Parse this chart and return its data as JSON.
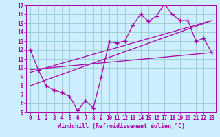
{
  "xlabel": "Windchill (Refroidissement éolien,°C)",
  "bg_color": "#cceeff",
  "line_color": "#aa00aa",
  "grid_color": "#99cccc",
  "data_x": [
    0,
    1,
    2,
    3,
    4,
    5,
    6,
    7,
    8,
    9,
    10,
    11,
    12,
    13,
    14,
    15,
    16,
    17,
    18,
    19,
    20,
    21,
    22,
    23
  ],
  "data_y": [
    12.0,
    9.8,
    8.0,
    7.5,
    7.2,
    6.8,
    5.2,
    6.3,
    5.5,
    9.0,
    12.9,
    12.8,
    13.0,
    14.8,
    16.0,
    15.2,
    15.8,
    17.2,
    16.0,
    15.3,
    15.3,
    13.0,
    13.3,
    11.7
  ],
  "flat_line_x": [
    0,
    23
  ],
  "flat_line_y": [
    9.8,
    11.7
  ],
  "upper_line_x": [
    0,
    23
  ],
  "upper_line_y": [
    9.5,
    15.3
  ],
  "lower_line_x": [
    0,
    23
  ],
  "lower_line_y": [
    8.0,
    15.3
  ],
  "xlim": [
    -0.5,
    23.5
  ],
  "ylim": [
    5,
    17
  ],
  "xticks": [
    0,
    1,
    2,
    3,
    4,
    5,
    6,
    7,
    8,
    9,
    10,
    11,
    12,
    13,
    14,
    15,
    16,
    17,
    18,
    19,
    20,
    21,
    22,
    23
  ],
  "yticks": [
    5,
    6,
    7,
    8,
    9,
    10,
    11,
    12,
    13,
    14,
    15,
    16,
    17
  ],
  "tick_fontsize": 5.5,
  "xlabel_fontsize": 6
}
